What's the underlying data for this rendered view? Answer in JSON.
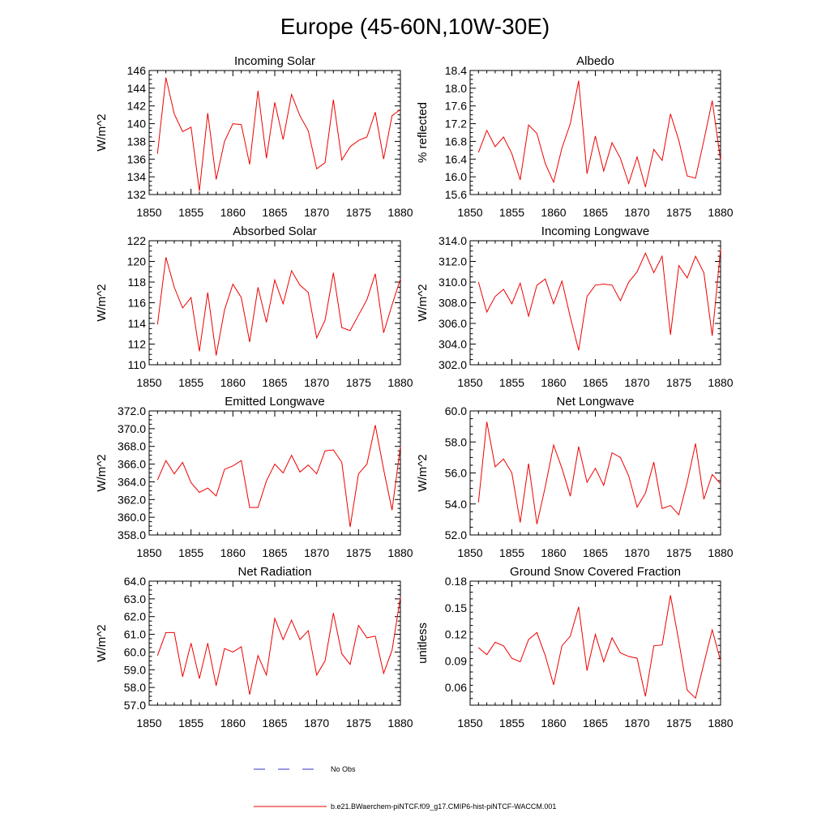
{
  "page_title": "Europe (45-60N,10W-30E)",
  "legend": {
    "items": [
      {
        "label": "No Obs",
        "color": "#3333cc",
        "style": "dashed"
      },
      {
        "label": "b.e21.BWaerchem-piNTCF.f09_g17.CMIP6-hist-piNTCF-WACCM.001",
        "color": "#ee0000",
        "style": "solid"
      }
    ]
  },
  "chart_data": [
    {
      "type": "line",
      "title": "Incoming Solar",
      "ylabel": "W/m^2",
      "xlim": [
        1850,
        1880
      ],
      "ylim": [
        132,
        146
      ],
      "xticks": [
        "1850",
        "1855",
        "1860",
        "1865",
        "1870",
        "1875",
        "1880"
      ],
      "yticks": [
        "132",
        "134",
        "136",
        "138",
        "140",
        "142",
        "144",
        "146"
      ],
      "series": [
        {
          "color": "#ee0000",
          "x": [
            1851,
            1852,
            1853,
            1854,
            1855,
            1856,
            1857,
            1858,
            1859,
            1860,
            1861,
            1862,
            1863,
            1864,
            1865,
            1866,
            1867,
            1868,
            1869,
            1870,
            1871,
            1872,
            1873,
            1874,
            1875,
            1876,
            1877,
            1878,
            1879,
            1880
          ],
          "values": [
            136.6,
            145.2,
            141.1,
            139.1,
            139.6,
            132.4,
            141.2,
            133.7,
            138.0,
            140.0,
            139.9,
            135.4,
            143.7,
            136.1,
            142.4,
            138.2,
            143.3,
            140.9,
            139.2,
            134.9,
            135.6,
            142.7,
            135.9,
            137.4,
            138.1,
            138.5,
            141.3,
            136.0,
            140.9,
            141.6
          ]
        }
      ]
    },
    {
      "type": "line",
      "title": "Albedo",
      "ylabel": "% reflected",
      "xlim": [
        1850,
        1880
      ],
      "ylim": [
        15.6,
        18.4
      ],
      "xticks": [
        "1850",
        "1855",
        "1860",
        "1865",
        "1870",
        "1875",
        "1880"
      ],
      "yticks": [
        "15.6",
        "16.0",
        "16.4",
        "16.8",
        "17.2",
        "17.6",
        "18.0",
        "18.4"
      ],
      "series": [
        {
          "color": "#ee0000",
          "x": [
            1851,
            1852,
            1853,
            1854,
            1855,
            1856,
            1857,
            1858,
            1859,
            1860,
            1861,
            1862,
            1863,
            1864,
            1865,
            1866,
            1867,
            1868,
            1869,
            1870,
            1871,
            1872,
            1873,
            1874,
            1875,
            1876,
            1877,
            1878,
            1879,
            1880
          ],
          "values": [
            16.55,
            17.05,
            16.68,
            16.9,
            16.52,
            15.93,
            17.17,
            16.98,
            16.3,
            15.88,
            16.65,
            17.2,
            18.17,
            16.07,
            16.92,
            16.13,
            16.77,
            16.42,
            15.85,
            16.45,
            15.77,
            16.62,
            16.37,
            17.42,
            16.82,
            16.02,
            15.97,
            16.82,
            17.72,
            16.37
          ]
        }
      ]
    },
    {
      "type": "line",
      "title": "Absorbed Solar",
      "ylabel": "W/m^2",
      "xlim": [
        1850,
        1880
      ],
      "ylim": [
        110,
        122
      ],
      "xticks": [
        "1850",
        "1855",
        "1860",
        "1865",
        "1870",
        "1875",
        "1880"
      ],
      "yticks": [
        "110",
        "112",
        "114",
        "116",
        "118",
        "120",
        "122"
      ],
      "series": [
        {
          "color": "#ee0000",
          "x": [
            1851,
            1852,
            1853,
            1854,
            1855,
            1856,
            1857,
            1858,
            1859,
            1860,
            1861,
            1862,
            1863,
            1864,
            1865,
            1866,
            1867,
            1868,
            1869,
            1870,
            1871,
            1872,
            1873,
            1874,
            1875,
            1876,
            1877,
            1878,
            1879,
            1880
          ],
          "values": [
            113.9,
            120.4,
            117.5,
            115.5,
            116.5,
            111.3,
            117.0,
            110.9,
            115.3,
            117.8,
            116.5,
            112.2,
            117.5,
            114.1,
            118.2,
            115.9,
            119.1,
            117.7,
            117.0,
            112.6,
            114.3,
            118.9,
            113.6,
            113.3,
            114.8,
            116.3,
            118.8,
            113.1,
            115.8,
            118.3
          ]
        }
      ]
    },
    {
      "type": "line",
      "title": "Incoming Longwave",
      "ylabel": "W/m^2",
      "xlim": [
        1850,
        1880
      ],
      "ylim": [
        302.0,
        314.0
      ],
      "xticks": [
        "1850",
        "1855",
        "1860",
        "1865",
        "1870",
        "1875",
        "1880"
      ],
      "yticks": [
        "302.0",
        "304.0",
        "306.0",
        "308.0",
        "310.0",
        "312.0",
        "314.0"
      ],
      "series": [
        {
          "color": "#ee0000",
          "x": [
            1851,
            1852,
            1853,
            1854,
            1855,
            1856,
            1857,
            1858,
            1859,
            1860,
            1861,
            1862,
            1863,
            1864,
            1865,
            1866,
            1867,
            1868,
            1869,
            1870,
            1871,
            1872,
            1873,
            1874,
            1875,
            1876,
            1877,
            1878,
            1879,
            1880
          ],
          "values": [
            310.0,
            307.1,
            308.6,
            309.3,
            307.9,
            309.9,
            306.7,
            309.7,
            310.3,
            307.9,
            310.1,
            306.6,
            303.4,
            308.6,
            309.7,
            309.8,
            309.7,
            308.2,
            310.0,
            311.0,
            312.8,
            310.9,
            312.5,
            304.9,
            311.6,
            310.4,
            312.5,
            310.9,
            304.8,
            313.2
          ]
        }
      ]
    },
    {
      "type": "line",
      "title": "Emitted Longwave",
      "ylabel": "W/m^2",
      "xlim": [
        1850,
        1880
      ],
      "ylim": [
        358.0,
        372.0
      ],
      "xticks": [
        "1850",
        "1855",
        "1860",
        "1865",
        "1870",
        "1875",
        "1880"
      ],
      "yticks": [
        "358.0",
        "360.0",
        "362.0",
        "364.0",
        "366.0",
        "368.0",
        "370.0",
        "372.0"
      ],
      "series": [
        {
          "color": "#ee0000",
          "x": [
            1851,
            1852,
            1853,
            1854,
            1855,
            1856,
            1857,
            1858,
            1859,
            1860,
            1861,
            1862,
            1863,
            1864,
            1865,
            1866,
            1867,
            1868,
            1869,
            1870,
            1871,
            1872,
            1873,
            1874,
            1875,
            1876,
            1877,
            1878,
            1879,
            1880
          ],
          "values": [
            364.2,
            366.4,
            364.9,
            366.2,
            363.9,
            362.8,
            363.3,
            362.4,
            365.4,
            365.8,
            366.4,
            361.1,
            361.1,
            364.1,
            366.0,
            365.0,
            367.0,
            365.1,
            365.9,
            364.9,
            367.5,
            367.6,
            366.2,
            358.9,
            364.9,
            366.0,
            370.4,
            365.4,
            360.8,
            368.0
          ]
        }
      ]
    },
    {
      "type": "line",
      "title": "Net Longwave",
      "ylabel": "W/m^2",
      "xlim": [
        1850,
        1880
      ],
      "ylim": [
        52.0,
        60.0
      ],
      "xticks": [
        "1850",
        "1855",
        "1860",
        "1865",
        "1870",
        "1875",
        "1880"
      ],
      "yticks": [
        "52.0",
        "54.0",
        "56.0",
        "58.0",
        "60.0"
      ],
      "series": [
        {
          "color": "#ee0000",
          "x": [
            1851,
            1852,
            1853,
            1854,
            1855,
            1856,
            1857,
            1858,
            1859,
            1860,
            1861,
            1862,
            1863,
            1864,
            1865,
            1866,
            1867,
            1868,
            1869,
            1870,
            1871,
            1872,
            1873,
            1874,
            1875,
            1876,
            1877,
            1878,
            1879,
            1880
          ],
          "values": [
            54.1,
            59.3,
            56.4,
            56.9,
            56.0,
            52.8,
            56.6,
            52.7,
            55.1,
            57.8,
            56.3,
            54.5,
            57.7,
            55.4,
            56.3,
            55.2,
            57.3,
            57.0,
            55.8,
            53.8,
            54.7,
            56.7,
            53.7,
            53.9,
            53.3,
            55.4,
            57.9,
            54.3,
            55.9,
            55.3
          ]
        }
      ]
    },
    {
      "type": "line",
      "title": "Net Radiation",
      "ylabel": "W/m^2",
      "xlim": [
        1850,
        1880
      ],
      "ylim": [
        57.0,
        64.0
      ],
      "xticks": [
        "1850",
        "1855",
        "1860",
        "1865",
        "1870",
        "1875",
        "1880"
      ],
      "yticks": [
        "57.0",
        "58.0",
        "59.0",
        "60.0",
        "61.0",
        "62.0",
        "63.0",
        "64.0"
      ],
      "series": [
        {
          "color": "#ee0000",
          "x": [
            1851,
            1852,
            1853,
            1854,
            1855,
            1856,
            1857,
            1858,
            1859,
            1860,
            1861,
            1862,
            1863,
            1864,
            1865,
            1866,
            1867,
            1868,
            1869,
            1870,
            1871,
            1872,
            1873,
            1874,
            1875,
            1876,
            1877,
            1878,
            1879,
            1880
          ],
          "values": [
            59.8,
            61.1,
            61.1,
            58.6,
            60.5,
            58.5,
            60.5,
            58.1,
            60.2,
            60.0,
            60.3,
            57.6,
            59.8,
            58.7,
            61.9,
            60.7,
            61.8,
            60.7,
            61.2,
            58.7,
            59.5,
            62.2,
            59.9,
            59.3,
            61.5,
            60.8,
            60.9,
            58.8,
            60.1,
            63.1
          ]
        }
      ]
    },
    {
      "type": "line",
      "title": "Ground Snow Covered Fraction",
      "ylabel": "unitless",
      "xlim": [
        1850,
        1880
      ],
      "ylim": [
        0.04,
        0.18
      ],
      "xticks": [
        "1850",
        "1855",
        "1860",
        "1865",
        "1870",
        "1875",
        "1880"
      ],
      "yticks": [
        "0.06",
        "0.09",
        "0.12",
        "0.15",
        "0.18"
      ],
      "ytick_values": [
        0.06,
        0.09,
        0.12,
        0.15,
        0.18
      ],
      "series": [
        {
          "color": "#ee0000",
          "x": [
            1851,
            1852,
            1853,
            1854,
            1855,
            1856,
            1857,
            1858,
            1859,
            1860,
            1861,
            1862,
            1863,
            1864,
            1865,
            1866,
            1867,
            1868,
            1869,
            1870,
            1871,
            1872,
            1873,
            1874,
            1875,
            1876,
            1877,
            1878,
            1879,
            1880
          ],
          "values": [
            0.105,
            0.097,
            0.111,
            0.107,
            0.093,
            0.089,
            0.114,
            0.122,
            0.096,
            0.063,
            0.107,
            0.118,
            0.151,
            0.079,
            0.12,
            0.089,
            0.116,
            0.099,
            0.095,
            0.093,
            0.05,
            0.107,
            0.108,
            0.164,
            0.112,
            0.057,
            0.048,
            0.087,
            0.125,
            0.09
          ]
        }
      ]
    }
  ]
}
